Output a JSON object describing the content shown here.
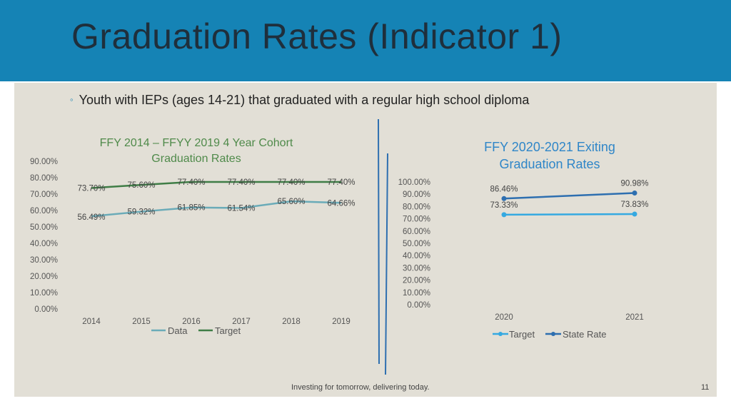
{
  "slide": {
    "title": "Graduation Rates (Indicator 1)",
    "bullet": "Youth with IEPs (ages 14-21) that graduated with a regular high school diploma",
    "footer": "Investing for tomorrow, delivering today.",
    "page_number": "11"
  },
  "colors": {
    "header": "#1583b5",
    "panel": "#e2dfd6",
    "data_line": "#6aabb8",
    "target_line": "#3f7d46",
    "target2": "#35a9e1",
    "state_rate": "#2e6fb0"
  },
  "chart_data": [
    {
      "type": "line",
      "title": "FFY 2014 – FFYY 2019 4 Year Cohort Graduation Rates",
      "categories": [
        "2014",
        "2015",
        "2016",
        "2017",
        "2018",
        "2019"
      ],
      "yticks": [
        "0.00%",
        "10.00%",
        "20.00%",
        "30.00%",
        "40.00%",
        "50.00%",
        "60.00%",
        "70.00%",
        "80.00%",
        "90.00%"
      ],
      "ylim": [
        0,
        90
      ],
      "legend_position": "bottom",
      "series": [
        {
          "name": "Data",
          "values": [
            56.49,
            59.32,
            61.85,
            61.54,
            65.6,
            64.66
          ],
          "labels": [
            "56.49%",
            "59.32%",
            "61.85%",
            "61.54%",
            "65.60%",
            "64.66%"
          ]
        },
        {
          "name": "Target",
          "values": [
            73.7,
            75.6,
            77.4,
            77.4,
            77.4,
            77.4
          ],
          "labels": [
            "73.70%",
            "75.60%",
            "77.40%",
            "77.40%",
            "77.40%",
            "77.40%"
          ]
        }
      ]
    },
    {
      "type": "line",
      "title": "FFY 2020-2021 Exiting Graduation Rates",
      "categories": [
        "2020",
        "2021"
      ],
      "yticks": [
        "0.00%",
        "10.00%",
        "20.00%",
        "30.00%",
        "40.00%",
        "50.00%",
        "60.00%",
        "70.00%",
        "80.00%",
        "90.00%",
        "100.00%"
      ],
      "ylim": [
        0,
        100
      ],
      "legend_position": "bottom",
      "series": [
        {
          "name": "Target",
          "values": [
            73.33,
            73.83
          ],
          "labels": [
            "73.33%",
            "73.83%"
          ]
        },
        {
          "name": "State Rate",
          "values": [
            86.46,
            90.98
          ],
          "labels": [
            "86.46%",
            "90.98%"
          ]
        }
      ]
    }
  ]
}
